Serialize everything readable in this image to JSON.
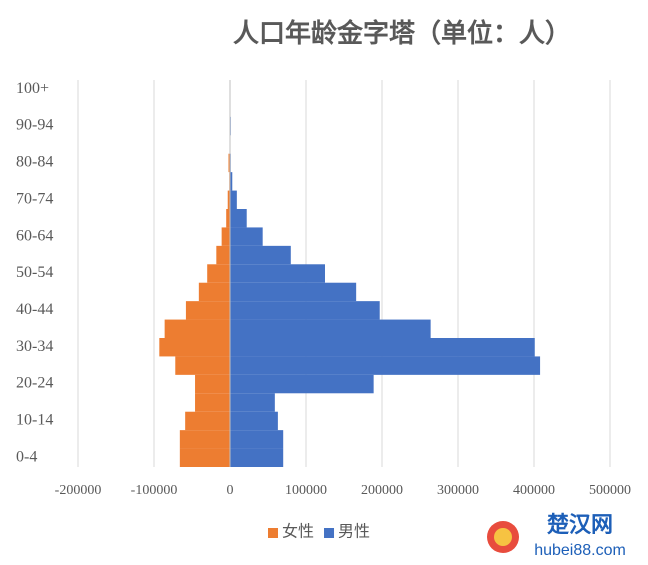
{
  "chart_data": {
    "type": "bar",
    "orientation": "horizontal",
    "title": "人口年龄金字塔（单位：人）",
    "categories": [
      "0-4",
      null,
      "10-14",
      null,
      "20-24",
      null,
      "30-34",
      null,
      "40-44",
      null,
      "50-54",
      null,
      "60-64",
      null,
      "70-74",
      null,
      "80-84",
      null,
      "90-94",
      null,
      "100+"
    ],
    "series": [
      {
        "name": "女性",
        "color": "#ed7d31",
        "values": [
          -66000,
          -66000,
          -59000,
          -46000,
          -46000,
          -72000,
          -93000,
          -86000,
          -58000,
          -41000,
          -30000,
          -18000,
          -11000,
          -5000,
          -3000,
          -1000,
          -2000,
          -500,
          0,
          0,
          0
        ]
      },
      {
        "name": "男性",
        "color": "#4472c4",
        "values": [
          70000,
          70000,
          63000,
          59000,
          189000,
          408000,
          401000,
          264000,
          197000,
          166000,
          125000,
          80000,
          43000,
          22000,
          9000,
          3000,
          1000,
          500,
          1000,
          0,
          0
        ]
      }
    ],
    "xlim": [
      -200000,
      500000
    ],
    "xticks": [
      -200000,
      -100000,
      0,
      100000,
      200000,
      300000,
      400000,
      500000
    ],
    "grid": true,
    "legend": "bottom"
  },
  "watermark": {
    "name": "楚汉网",
    "url": "hubei88.com"
  }
}
